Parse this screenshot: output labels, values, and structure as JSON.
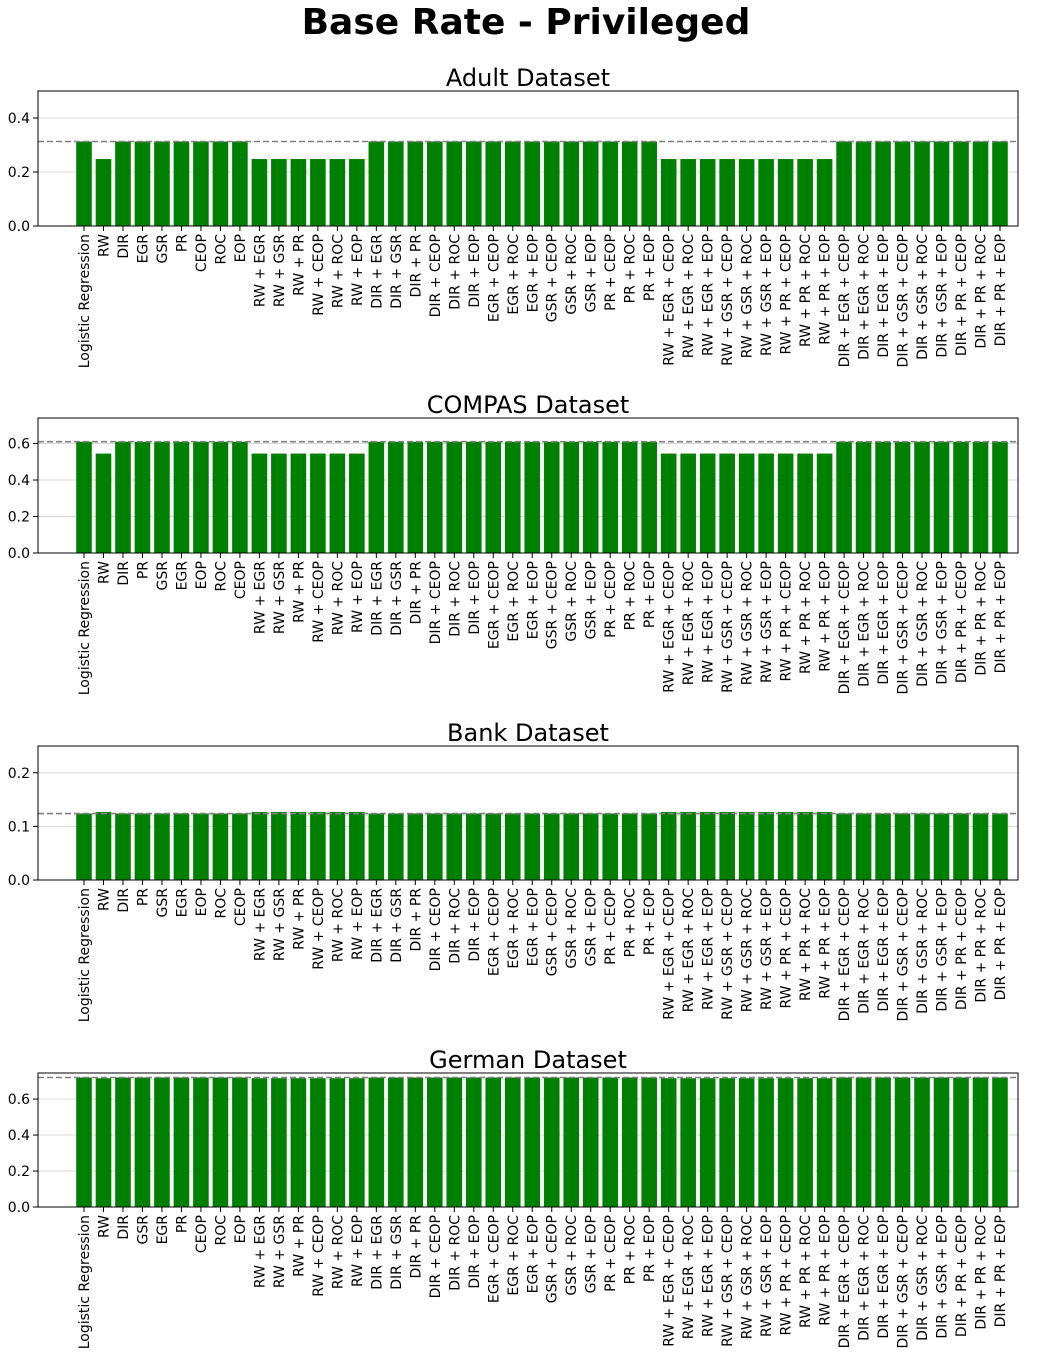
{
  "figure": {
    "title": "Base Rate - Privileged",
    "bar_color": "#008000",
    "reference_line_color": "#808080",
    "grid_color": "#d9d9d9"
  },
  "chart_data": [
    {
      "type": "bar",
      "title": "Adult Dataset",
      "xlabel": "",
      "ylabel": "",
      "ylim": [
        0,
        0.5
      ],
      "yticks": [
        0.0,
        0.2,
        0.4
      ],
      "ytick_labels": [
        "0.0",
        "0.2",
        "0.4"
      ],
      "grid": "y",
      "reference_line": 0.313,
      "categories": [
        "Logistic Regression",
        "RW",
        "DIR",
        "EGR",
        "GSR",
        "PR",
        "CEOP",
        "ROC",
        "EOP",
        "RW + EGR",
        "RW + GSR",
        "RW + PR",
        "RW + CEOP",
        "RW + ROC",
        "RW + EOP",
        "DIR + EGR",
        "DIR + GSR",
        "DIR + PR",
        "DIR + CEOP",
        "DIR + ROC",
        "DIR + EOP",
        "EGR + CEOP",
        "EGR + ROC",
        "EGR + EOP",
        "GSR + CEOP",
        "GSR + ROC",
        "GSR + EOP",
        "PR + CEOP",
        "PR + ROC",
        "PR + EOP",
        "RW + EGR + CEOP",
        "RW + EGR + ROC",
        "RW + EGR + EOP",
        "RW + GSR + CEOP",
        "RW + GSR + ROC",
        "RW + GSR + EOP",
        "RW + PR + CEOP",
        "RW + PR + ROC",
        "RW + PR + EOP",
        "DIR + EGR + CEOP",
        "DIR + EGR + ROC",
        "DIR + EGR + EOP",
        "DIR + GSR + CEOP",
        "DIR + GSR + ROC",
        "DIR + GSR + EOP",
        "DIR + PR + CEOP",
        "DIR + PR + ROC",
        "DIR + PR + EOP"
      ],
      "values": [
        0.313,
        0.248,
        0.313,
        0.313,
        0.313,
        0.313,
        0.313,
        0.313,
        0.313,
        0.248,
        0.248,
        0.248,
        0.248,
        0.248,
        0.248,
        0.313,
        0.313,
        0.313,
        0.313,
        0.313,
        0.313,
        0.313,
        0.313,
        0.313,
        0.313,
        0.313,
        0.313,
        0.313,
        0.313,
        0.313,
        0.248,
        0.248,
        0.248,
        0.248,
        0.248,
        0.248,
        0.248,
        0.248,
        0.248,
        0.313,
        0.313,
        0.313,
        0.313,
        0.313,
        0.313,
        0.313,
        0.313,
        0.313
      ]
    },
    {
      "type": "bar",
      "title": "COMPAS Dataset",
      "xlabel": "",
      "ylabel": "",
      "ylim": [
        0,
        0.74
      ],
      "yticks": [
        0.0,
        0.2,
        0.4,
        0.6
      ],
      "ytick_labels": [
        "0.0",
        "0.2",
        "0.4",
        "0.6"
      ],
      "grid": "y",
      "reference_line": 0.61,
      "categories": [
        "Logistic Regression",
        "RW",
        "DIR",
        "PR",
        "GSR",
        "EGR",
        "EOP",
        "ROC",
        "CEOP",
        "RW + EGR",
        "RW + GSR",
        "RW + PR",
        "RW + CEOP",
        "RW + ROC",
        "RW + EOP",
        "DIR + EGR",
        "DIR + GSR",
        "DIR + PR",
        "DIR + CEOP",
        "DIR + ROC",
        "DIR + EOP",
        "EGR + CEOP",
        "EGR + ROC",
        "EGR + EOP",
        "GSR + CEOP",
        "GSR + ROC",
        "GSR + EOP",
        "PR + CEOP",
        "PR + ROC",
        "PR + EOP",
        "RW + EGR + CEOP",
        "RW + EGR + ROC",
        "RW + EGR + EOP",
        "RW + GSR + CEOP",
        "RW + GSR + ROC",
        "RW + GSR + EOP",
        "RW + PR + CEOP",
        "RW + PR + ROC",
        "RW + PR + EOP",
        "DIR + EGR + CEOP",
        "DIR + EGR + ROC",
        "DIR + EGR + EOP",
        "DIR + GSR + CEOP",
        "DIR + GSR + ROC",
        "DIR + GSR + EOP",
        "DIR + PR + CEOP",
        "DIR + PR + ROC",
        "DIR + PR + EOP"
      ],
      "values": [
        0.61,
        0.545,
        0.61,
        0.61,
        0.61,
        0.61,
        0.61,
        0.61,
        0.61,
        0.545,
        0.545,
        0.545,
        0.545,
        0.545,
        0.545,
        0.61,
        0.61,
        0.61,
        0.61,
        0.61,
        0.61,
        0.61,
        0.61,
        0.61,
        0.61,
        0.61,
        0.61,
        0.61,
        0.61,
        0.61,
        0.545,
        0.545,
        0.545,
        0.545,
        0.545,
        0.545,
        0.545,
        0.545,
        0.545,
        0.61,
        0.61,
        0.61,
        0.61,
        0.61,
        0.61,
        0.61,
        0.61,
        0.61
      ]
    },
    {
      "type": "bar",
      "title": "Bank Dataset",
      "xlabel": "",
      "ylabel": "",
      "ylim": [
        0,
        0.25
      ],
      "yticks": [
        0.0,
        0.1,
        0.2
      ],
      "ytick_labels": [
        "0.0",
        "0.1",
        "0.2"
      ],
      "grid": "y",
      "reference_line": 0.124,
      "categories": [
        "Logistic Regression",
        "RW",
        "DIR",
        "PR",
        "GSR",
        "EGR",
        "EOP",
        "ROC",
        "CEOP",
        "RW + EGR",
        "RW + GSR",
        "RW + PR",
        "RW + CEOP",
        "RW + ROC",
        "RW + EOP",
        "DIR + EGR",
        "DIR + GSR",
        "DIR + PR",
        "DIR + CEOP",
        "DIR + ROC",
        "DIR + EOP",
        "EGR + CEOP",
        "EGR + ROC",
        "EGR + EOP",
        "GSR + CEOP",
        "GSR + ROC",
        "GSR + EOP",
        "PR + CEOP",
        "PR + ROC",
        "PR + EOP",
        "RW + EGR + CEOP",
        "RW + EGR + ROC",
        "RW + EGR + EOP",
        "RW + GSR + CEOP",
        "RW + GSR + ROC",
        "RW + GSR + EOP",
        "RW + PR + CEOP",
        "RW + PR + ROC",
        "RW + PR + EOP",
        "DIR + EGR + CEOP",
        "DIR + EGR + ROC",
        "DIR + EGR + EOP",
        "DIR + GSR + CEOP",
        "DIR + GSR + ROC",
        "DIR + GSR + EOP",
        "DIR + PR + CEOP",
        "DIR + PR + ROC",
        "DIR + PR + EOP"
      ],
      "values": [
        0.124,
        0.127,
        0.124,
        0.124,
        0.124,
        0.124,
        0.124,
        0.124,
        0.124,
        0.127,
        0.127,
        0.127,
        0.127,
        0.127,
        0.127,
        0.124,
        0.124,
        0.124,
        0.124,
        0.124,
        0.124,
        0.124,
        0.124,
        0.124,
        0.124,
        0.124,
        0.124,
        0.124,
        0.124,
        0.124,
        0.127,
        0.127,
        0.127,
        0.127,
        0.127,
        0.127,
        0.127,
        0.127,
        0.127,
        0.124,
        0.124,
        0.124,
        0.124,
        0.124,
        0.124,
        0.124,
        0.124,
        0.124
      ]
    },
    {
      "type": "bar",
      "title": "German Dataset",
      "xlabel": "",
      "ylabel": "",
      "ylim": [
        0,
        0.745
      ],
      "yticks": [
        0.0,
        0.2,
        0.4,
        0.6
      ],
      "ytick_labels": [
        "0.0",
        "0.2",
        "0.4",
        "0.6"
      ],
      "grid": "y",
      "reference_line": 0.72,
      "categories": [
        "Logistic Regression",
        "RW",
        "DIR",
        "GSR",
        "EGR",
        "PR",
        "CEOP",
        "ROC",
        "EOP",
        "RW + EGR",
        "RW + GSR",
        "RW + PR",
        "RW + CEOP",
        "RW + ROC",
        "RW + EOP",
        "DIR + EGR",
        "DIR + GSR",
        "DIR + PR",
        "DIR + CEOP",
        "DIR + ROC",
        "DIR + EOP",
        "EGR + CEOP",
        "EGR + ROC",
        "EGR + EOP",
        "GSR + CEOP",
        "GSR + ROC",
        "GSR + EOP",
        "PR + CEOP",
        "PR + ROC",
        "PR + EOP",
        "RW + EGR + CEOP",
        "RW + EGR + ROC",
        "RW + EGR + EOP",
        "RW + GSR + CEOP",
        "RW + GSR + ROC",
        "RW + GSR + EOP",
        "RW + PR + CEOP",
        "RW + PR + ROC",
        "RW + PR + EOP",
        "DIR + EGR + CEOP",
        "DIR + EGR + ROC",
        "DIR + EGR + EOP",
        "DIR + GSR + CEOP",
        "DIR + GSR + ROC",
        "DIR + GSR + EOP",
        "DIR + PR + CEOP",
        "DIR + PR + ROC",
        "DIR + PR + EOP"
      ],
      "values": [
        0.72,
        0.716,
        0.72,
        0.72,
        0.72,
        0.72,
        0.72,
        0.72,
        0.72,
        0.716,
        0.716,
        0.716,
        0.716,
        0.716,
        0.716,
        0.72,
        0.72,
        0.72,
        0.72,
        0.72,
        0.72,
        0.72,
        0.72,
        0.72,
        0.72,
        0.72,
        0.72,
        0.72,
        0.72,
        0.72,
        0.716,
        0.716,
        0.716,
        0.716,
        0.716,
        0.716,
        0.716,
        0.716,
        0.716,
        0.72,
        0.72,
        0.72,
        0.72,
        0.72,
        0.72,
        0.72,
        0.72,
        0.72
      ]
    }
  ]
}
